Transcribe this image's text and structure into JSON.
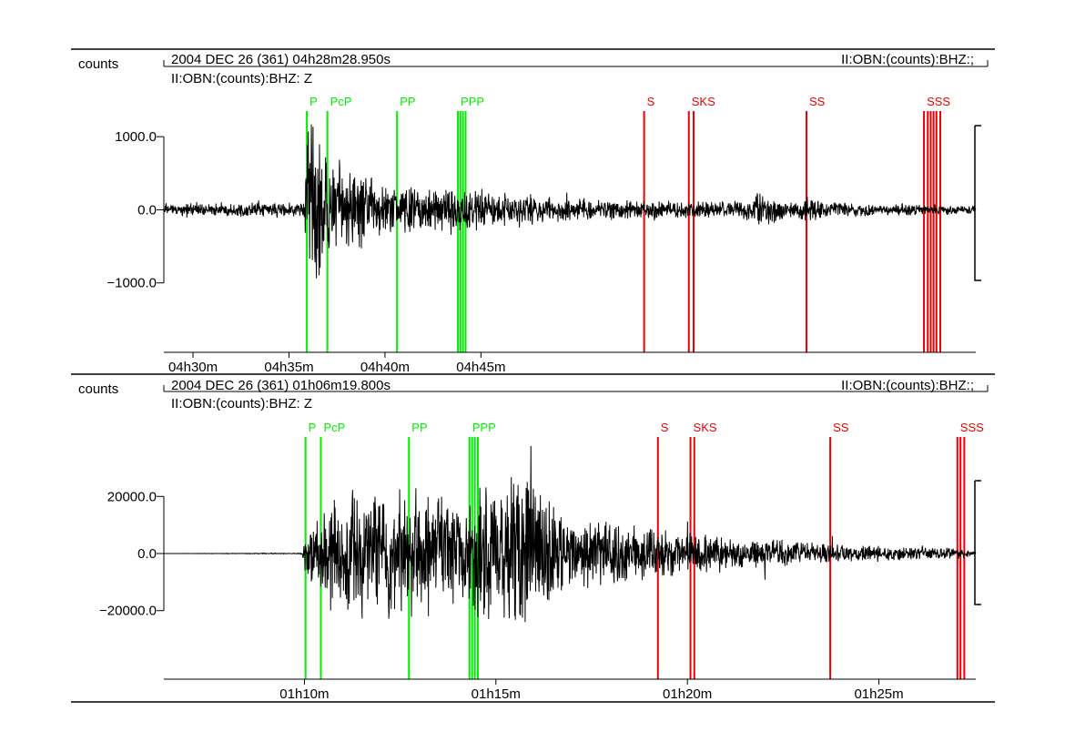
{
  "chart_data": [
    {
      "type": "line",
      "ylabel": "counts",
      "header_left": "2004 DEC 26 (361)  04h28m28.950s",
      "header_right": "II:OBN:(counts):BHZ:;",
      "trace_label": "II:OBN:(counts):BHZ: Z",
      "y_ticks": [
        {
          "value": 1000,
          "label": "1000.0"
        },
        {
          "value": 0,
          "label": "0.0"
        },
        {
          "value": -1000,
          "label": "−1000.0"
        }
      ],
      "ylim": [
        -1950,
        1500
      ],
      "x_unit": "minutes",
      "xlim": [
        0,
        42.3
      ],
      "x_ticks": [
        {
          "value": 1.52,
          "label": "04h30m"
        },
        {
          "value": 6.52,
          "label": "04h35m"
        },
        {
          "value": 11.52,
          "label": "04h40m"
        },
        {
          "value": 16.52,
          "label": "04h45m"
        }
      ],
      "green_picks": [
        {
          "t": 7.45,
          "label": "P"
        },
        {
          "t": 8.52,
          "label": "PcP"
        },
        {
          "t": 12.15,
          "label": "PP"
        },
        {
          "t": 15.32,
          "label": "PPP"
        },
        {
          "t": 15.45,
          "label": ""
        },
        {
          "t": 15.58,
          "label": ""
        },
        {
          "t": 15.72,
          "label": ""
        }
      ],
      "red_picks": [
        {
          "t": 25.02,
          "label": "S"
        },
        {
          "t": 27.35,
          "label": "SKS"
        },
        {
          "t": 27.6,
          "label": ""
        },
        {
          "t": 33.48,
          "label": "SS"
        },
        {
          "t": 39.6,
          "label": "SSS"
        },
        {
          "t": 39.8,
          "label": ""
        },
        {
          "t": 39.95,
          "label": ""
        },
        {
          "t": 40.1,
          "label": ""
        },
        {
          "t": 40.25,
          "label": ""
        },
        {
          "t": 40.45,
          "label": ""
        }
      ],
      "waveform_envelope": [
        {
          "t": 0,
          "amp": 90
        },
        {
          "t": 7.3,
          "amp": 110
        },
        {
          "t": 7.45,
          "amp": 1500
        },
        {
          "t": 7.9,
          "amp": 1300
        },
        {
          "t": 8.5,
          "amp": 800
        },
        {
          "t": 10.0,
          "amp": 600
        },
        {
          "t": 12.5,
          "amp": 380
        },
        {
          "t": 15.0,
          "amp": 320
        },
        {
          "t": 16.6,
          "amp": 350
        },
        {
          "t": 18.0,
          "amp": 220
        },
        {
          "t": 25.0,
          "amp": 140
        },
        {
          "t": 30.0,
          "amp": 120
        },
        {
          "t": 31.0,
          "amp": 300
        },
        {
          "t": 32.5,
          "amp": 130
        },
        {
          "t": 33.5,
          "amp": 200
        },
        {
          "t": 35.0,
          "amp": 110
        },
        {
          "t": 42.3,
          "amp": 60
        }
      ]
    },
    {
      "type": "line",
      "ylabel": "counts",
      "header_left": "2004 DEC 26 (361)  01h06m19.800s",
      "header_right": "II:OBN:(counts):BHZ:;",
      "trace_label": "II:OBN:(counts):BHZ: Z",
      "y_ticks": [
        {
          "value": 20000,
          "label": "20000.0"
        },
        {
          "value": 0,
          "label": "0.0"
        },
        {
          "value": -20000,
          "label": "−20000.0"
        }
      ],
      "ylim": [
        -44000,
        44000
      ],
      "x_unit": "minutes",
      "xlim": [
        0,
        21.2
      ],
      "x_ticks": [
        {
          "value": 3.67,
          "label": "01h10m"
        },
        {
          "value": 8.67,
          "label": "01h15m"
        },
        {
          "value": 13.67,
          "label": "01h20m"
        },
        {
          "value": 18.67,
          "label": "01h25m"
        }
      ],
      "green_picks": [
        {
          "t": 3.7,
          "label": "P"
        },
        {
          "t": 4.1,
          "label": "PcP"
        },
        {
          "t": 6.4,
          "label": "PP"
        },
        {
          "t": 7.98,
          "label": "PPP"
        },
        {
          "t": 8.05,
          "label": ""
        },
        {
          "t": 8.12,
          "label": ""
        },
        {
          "t": 8.2,
          "label": ""
        }
      ],
      "red_picks": [
        {
          "t": 12.9,
          "label": "S"
        },
        {
          "t": 13.75,
          "label": "SKS"
        },
        {
          "t": 13.85,
          "label": ""
        },
        {
          "t": 17.4,
          "label": "SS"
        },
        {
          "t": 20.72,
          "label": "SSS"
        },
        {
          "t": 20.8,
          "label": ""
        },
        {
          "t": 20.9,
          "label": ""
        }
      ],
      "waveform_envelope": [
        {
          "t": 0,
          "amp": 0
        },
        {
          "t": 3.6,
          "amp": 200
        },
        {
          "t": 3.7,
          "amp": 8000
        },
        {
          "t": 4.3,
          "amp": 18000
        },
        {
          "t": 5.0,
          "amp": 24000
        },
        {
          "t": 6.3,
          "amp": 26000
        },
        {
          "t": 7.5,
          "amp": 22000
        },
        {
          "t": 8.5,
          "amp": 26000
        },
        {
          "t": 9.3,
          "amp": 30000
        },
        {
          "t": 10.5,
          "amp": 15000
        },
        {
          "t": 13.0,
          "amp": 9000
        },
        {
          "t": 16.0,
          "amp": 5000
        },
        {
          "t": 18.0,
          "amp": 3500
        },
        {
          "t": 20.5,
          "amp": 2000
        },
        {
          "t": 21.2,
          "amp": 1000
        }
      ]
    }
  ],
  "colors": {
    "trace": "#000000",
    "p_phases": "#00ee00",
    "s_phases": "#ee0000",
    "frame": "#000000"
  }
}
